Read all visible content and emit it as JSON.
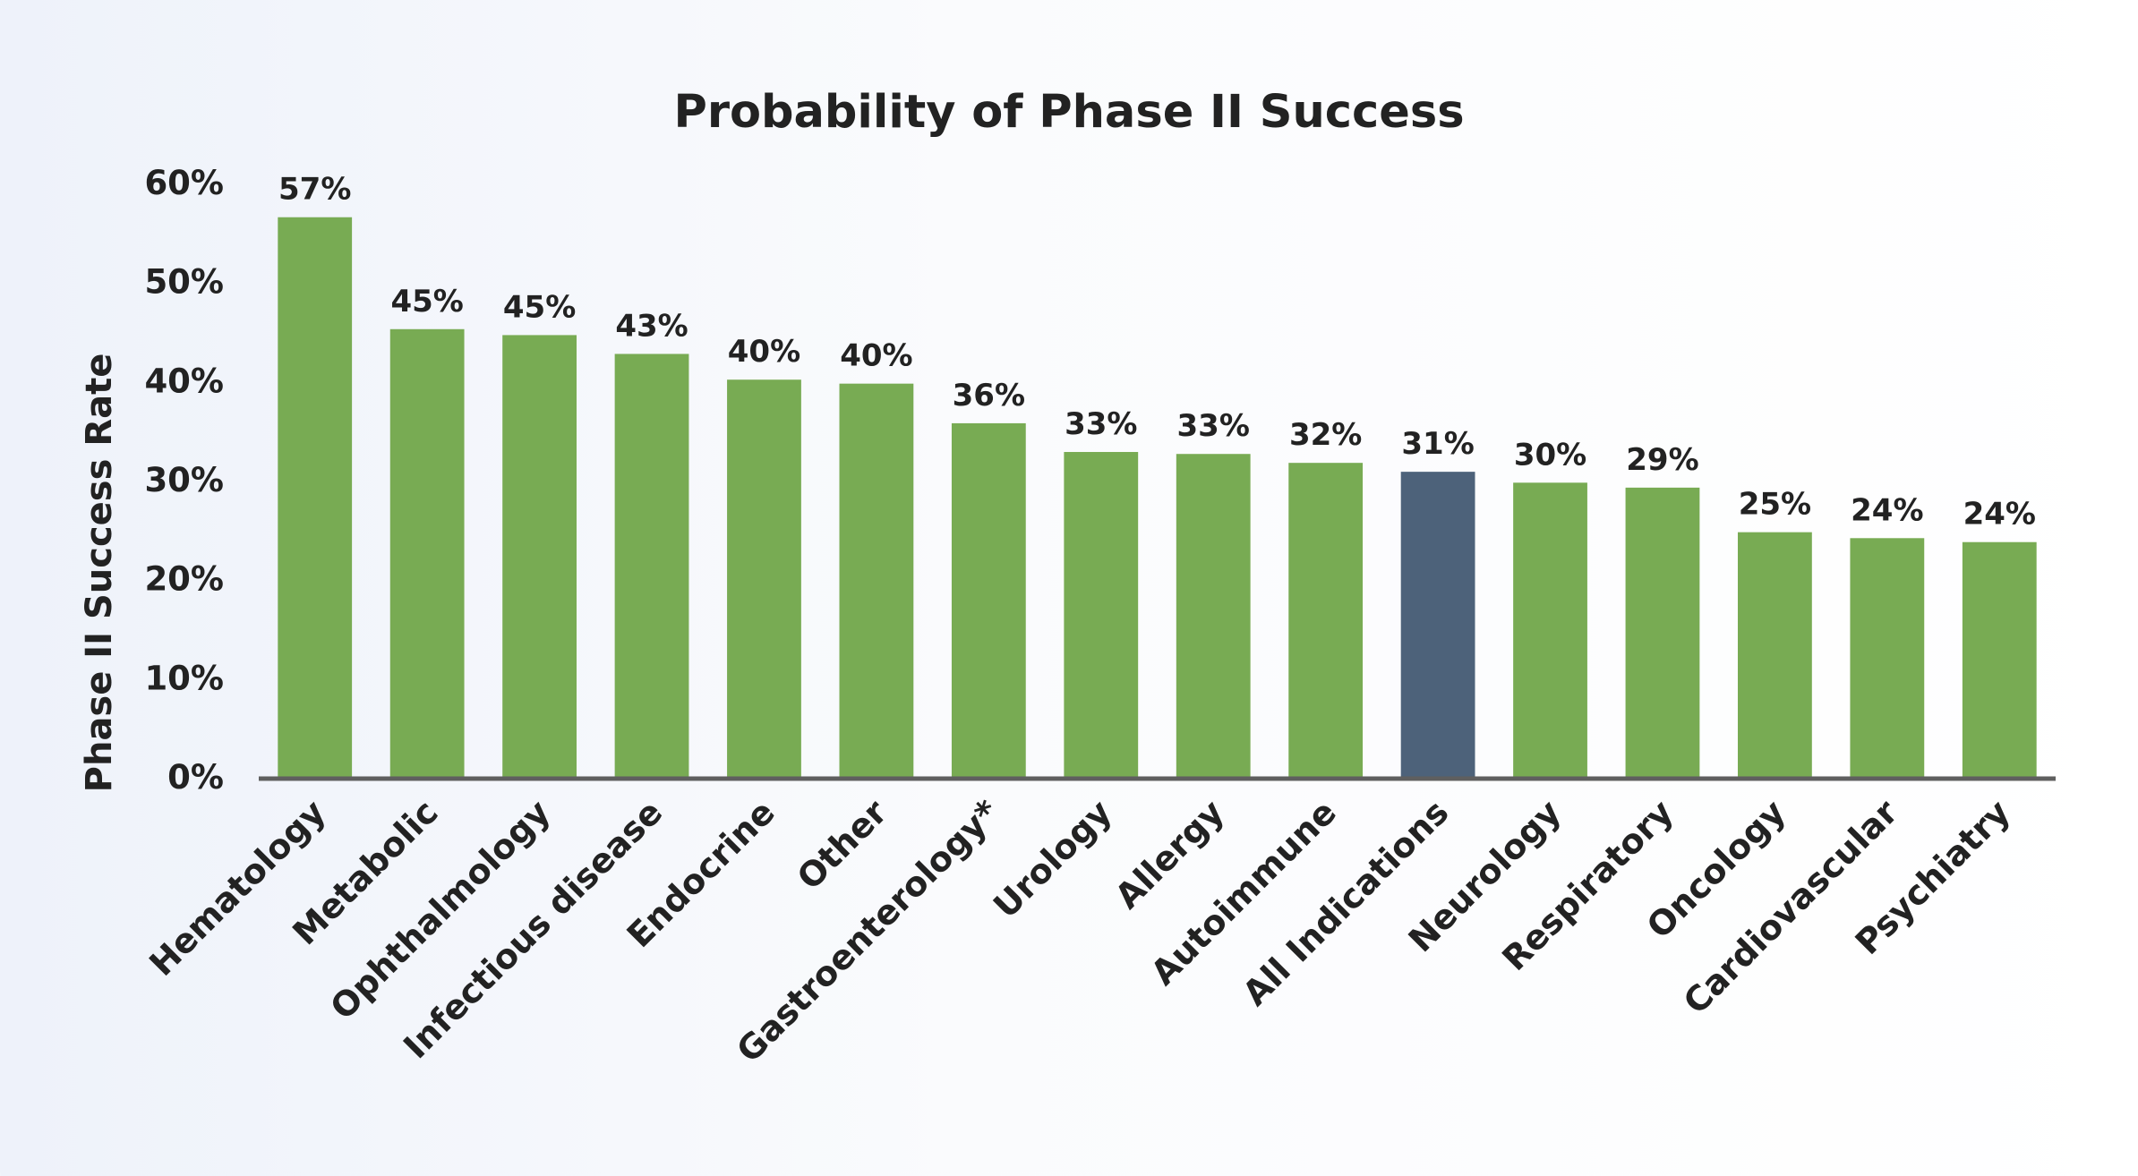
{
  "chart_data": {
    "type": "bar",
    "title": "Probability of Phase II Success",
    "xlabel": "",
    "ylabel": "Phase II Success Rate",
    "ylim": [
      0,
      60
    ],
    "yticks": [
      "0%",
      "10%",
      "20%",
      "30%",
      "40%",
      "50%",
      "60%"
    ],
    "categories": [
      "Hematology",
      "Metabolic",
      "Ophthalmology",
      "Infectious disease",
      "Endocrine",
      "Other",
      "Gastroenterology*",
      "Urology",
      "Allergy",
      "Autoimmune",
      "All Indications",
      "Neurology",
      "Respiratory",
      "Oncology",
      "Cardiovascular",
      "Psychiatry"
    ],
    "values": [
      56.5,
      45.2,
      44.6,
      42.7,
      40.1,
      39.7,
      35.7,
      32.8,
      32.6,
      31.7,
      30.8,
      29.7,
      29.2,
      24.7,
      24.1,
      23.7
    ],
    "labels": [
      "57%",
      "45%",
      "45%",
      "43%",
      "40%",
      "40%",
      "36%",
      "33%",
      "33%",
      "32%",
      "31%",
      "30%",
      "29%",
      "25%",
      "24%",
      "24%"
    ],
    "grid": false,
    "legend": "none",
    "colors": {
      "bar": "#78ab53",
      "highlight": "#4d627a",
      "axis": "#5f5f5f",
      "text": "#222222"
    },
    "highlight_category": "All Indications"
  }
}
